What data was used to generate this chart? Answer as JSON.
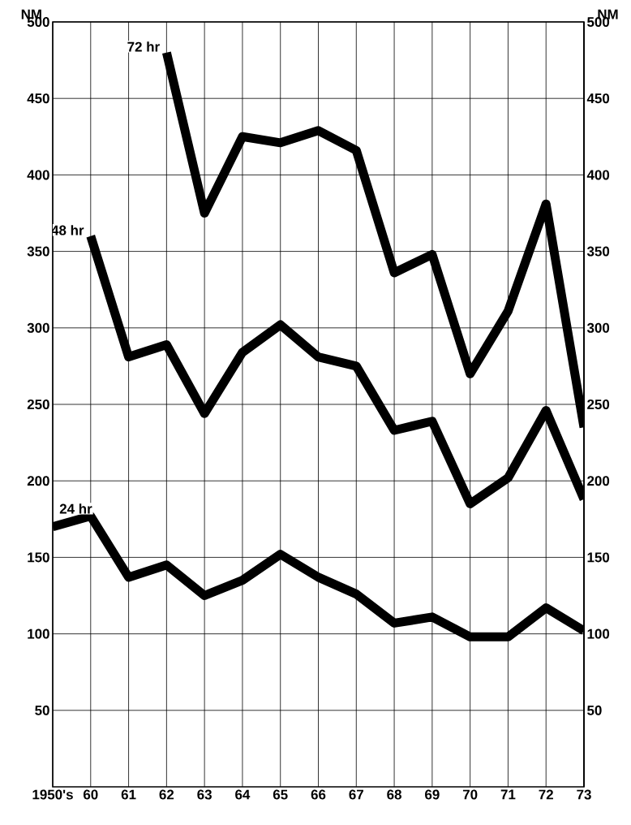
{
  "chart_data": {
    "type": "line",
    "ylabel": "NM",
    "y2label": "NM",
    "categories": [
      "1950's",
      "60",
      "61",
      "62",
      "63",
      "64",
      "65",
      "66",
      "67",
      "68",
      "69",
      "70",
      "71",
      "72",
      "73"
    ],
    "series": [
      {
        "name": "72 hr",
        "color": "#000000",
        "values": [
          null,
          null,
          null,
          480,
          375,
          425,
          421,
          429,
          416,
          336,
          348,
          270,
          311,
          381,
          235
        ]
      },
      {
        "name": "48 hr",
        "color": "#000000",
        "values": [
          null,
          360,
          281,
          289,
          244,
          284,
          302,
          281,
          275,
          233,
          239,
          185,
          202,
          246,
          188
        ]
      },
      {
        "name": "24 hr",
        "color": "#000000",
        "values": [
          170,
          177,
          137,
          145,
          125,
          135,
          152,
          137,
          126,
          107,
          111,
          98,
          98,
          117,
          102
        ]
      }
    ],
    "ylim": [
      0,
      500
    ],
    "yticks": [
      50,
      100,
      150,
      200,
      250,
      300,
      350,
      400,
      450,
      500
    ],
    "y2lim": [
      0,
      500
    ],
    "y2ticks": [
      50,
      100,
      150,
      200,
      250,
      300,
      350,
      400,
      450,
      500
    ],
    "grid": true,
    "line_style": "solid"
  }
}
